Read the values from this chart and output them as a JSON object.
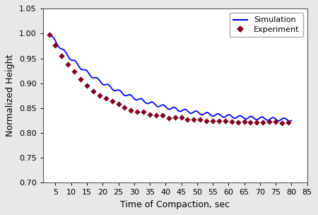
{
  "title": "",
  "xlabel": "Time of Compaction, sec",
  "ylabel": "Normalized Height",
  "xlim": [
    1,
    85
  ],
  "ylim": [
    0.7,
    1.05
  ],
  "xticks": [
    5,
    10,
    15,
    20,
    25,
    30,
    35,
    40,
    45,
    50,
    55,
    60,
    65,
    70,
    75,
    80,
    85
  ],
  "yticks": [
    0.7,
    0.75,
    0.8,
    0.85,
    0.9,
    0.95,
    1.0,
    1.05
  ],
  "sim_color": "#0000FF",
  "exp_color": "#800020",
  "exp_marker": "D",
  "legend_labels": [
    "Simulation",
    "Experiment"
  ],
  "background_color": "#e8e8e8",
  "plot_bg_color": "#ffffff",
  "wave_amplitude": 0.003,
  "wave_frequency": 1.8,
  "sim_decay_rate": 0.048,
  "sim_asymptote": 0.822,
  "sim_range": 0.178,
  "exp_decay_rate": 0.072,
  "exp_asymptote": 0.82,
  "exp_range": 0.18
}
